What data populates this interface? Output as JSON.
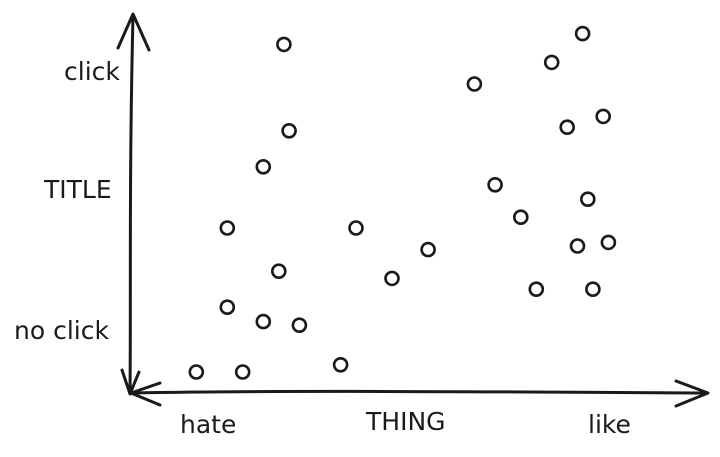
{
  "chart_data": {
    "type": "scatter",
    "title": "",
    "xlabel": "THING",
    "ylabel": "TITLE",
    "x_tick_labels": [
      "hate",
      "like"
    ],
    "y_tick_labels": [
      "no click",
      "click"
    ],
    "xlim": [
      0,
      100
    ],
    "ylim": [
      0,
      100
    ],
    "grid": false,
    "series": [
      {
        "points": [
          {
            "x": 9,
            "y": 5
          },
          {
            "x": 18,
            "y": 5
          },
          {
            "x": 37,
            "y": 7
          },
          {
            "x": 15,
            "y": 23
          },
          {
            "x": 22,
            "y": 19
          },
          {
            "x": 29,
            "y": 18
          },
          {
            "x": 15,
            "y": 45
          },
          {
            "x": 25,
            "y": 33
          },
          {
            "x": 22,
            "y": 62
          },
          {
            "x": 27,
            "y": 72
          },
          {
            "x": 26,
            "y": 96
          },
          {
            "x": 40,
            "y": 45
          },
          {
            "x": 47,
            "y": 31
          },
          {
            "x": 54,
            "y": 39
          },
          {
            "x": 63,
            "y": 85
          },
          {
            "x": 67,
            "y": 57
          },
          {
            "x": 72,
            "y": 48
          },
          {
            "x": 75,
            "y": 28
          },
          {
            "x": 78,
            "y": 91
          },
          {
            "x": 81,
            "y": 73
          },
          {
            "x": 83,
            "y": 40
          },
          {
            "x": 84,
            "y": 99
          },
          {
            "x": 85,
            "y": 53
          },
          {
            "x": 86,
            "y": 28
          },
          {
            "x": 88,
            "y": 76
          },
          {
            "x": 89,
            "y": 41
          }
        ]
      }
    ]
  }
}
